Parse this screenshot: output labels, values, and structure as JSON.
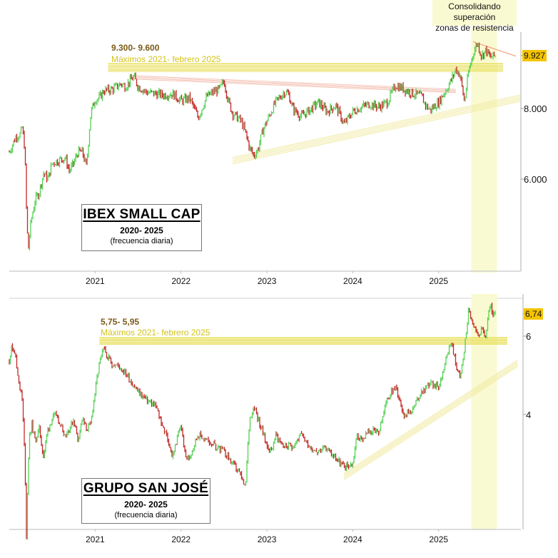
{
  "annotation": {
    "line1": "Consolidando superación",
    "line2": "zonas de resistencia"
  },
  "colors": {
    "up": "#44cc44",
    "down": "#bb1111",
    "resistance": "#e8e060",
    "trend": "#f0eaa0",
    "downtrend": "#f2b8a8",
    "highlight": "#fafad2",
    "last_value_bg": "#f5c400",
    "range_label": "#7a5a14",
    "sub_label": "#d4c318"
  },
  "chart_data": [
    {
      "type": "line",
      "title": "IBEX SMALL CAP",
      "subtitle": "2020- 2025",
      "frequency": "(frecuencia diaria)",
      "scale": "log",
      "ylim": [
        4300,
        10700
      ],
      "yticks": [
        {
          "value": 6000,
          "label": "6.000"
        },
        {
          "value": 8000,
          "label": "8.000"
        }
      ],
      "last_value": {
        "value": 9927,
        "label": "9.927"
      },
      "xticks": [
        {
          "value": 2021,
          "label": "2021"
        },
        {
          "value": 2022,
          "label": "2022"
        },
        {
          "value": 2023,
          "label": "2023"
        },
        {
          "value": 2024,
          "label": "2024"
        },
        {
          "value": 2025,
          "label": "2025"
        }
      ],
      "xlim": [
        2019.9,
        2025.95
      ],
      "resistance": {
        "low": 9300,
        "high": 9600,
        "label": "9.300- 9.600",
        "sublabel": "Máximos 2021- febrero 2025",
        "from": 2021.15,
        "to": 2025.75
      },
      "highlight_span": [
        2025.38,
        2025.68
      ],
      "series_x": [
        2020.0,
        2020.08,
        2020.13,
        2020.15,
        2020.18,
        2020.2,
        2020.22,
        2020.25,
        2020.3,
        2020.35,
        2020.4,
        2020.45,
        2020.5,
        2020.55,
        2020.6,
        2020.65,
        2020.7,
        2020.75,
        2020.8,
        2020.85,
        2020.9,
        2020.95,
        2021.0,
        2021.05,
        2021.1,
        2021.2,
        2021.3,
        2021.35,
        2021.45,
        2021.5,
        2021.6,
        2021.7,
        2021.8,
        2021.9,
        2022.0,
        2022.1,
        2022.2,
        2022.3,
        2022.4,
        2022.45,
        2022.5,
        2022.55,
        2022.6,
        2022.7,
        2022.75,
        2022.8,
        2022.85,
        2022.9,
        2022.95,
        2023.0,
        2023.1,
        2023.2,
        2023.25,
        2023.3,
        2023.4,
        2023.5,
        2023.6,
        2023.7,
        2023.8,
        2023.9,
        2024.0,
        2024.1,
        2024.2,
        2024.3,
        2024.4,
        2024.5,
        2024.6,
        2024.7,
        2024.8,
        2024.85,
        2024.9,
        2025.0,
        2025.1,
        2025.15,
        2025.2,
        2025.25,
        2025.3,
        2025.35,
        2025.4,
        2025.45,
        2025.5,
        2025.55,
        2025.6,
        2025.66
      ],
      "series_y": [
        6700,
        7150,
        7200,
        7400,
        6800,
        5300,
        4450,
        5000,
        5500,
        5700,
        6150,
        6000,
        6400,
        6450,
        6500,
        6550,
        6200,
        6400,
        6700,
        6700,
        6300,
        7850,
        8300,
        8350,
        8600,
        8650,
        8850,
        8750,
        9100,
        8750,
        8550,
        8500,
        8450,
        8500,
        8250,
        8350,
        7700,
        8400,
        8600,
        8650,
        8950,
        8250,
        7850,
        7600,
        7250,
        6800,
        6600,
        6800,
        7300,
        7600,
        8200,
        8550,
        8500,
        8000,
        7750,
        7950,
        8200,
        7900,
        8100,
        7500,
        7900,
        8050,
        8150,
        8050,
        8200,
        8800,
        8650,
        8500,
        8400,
        8100,
        7950,
        8200,
        8700,
        9000,
        9400,
        9150,
        8200,
        9300,
        10000,
        10450,
        9900,
        10150,
        9850,
        9927
      ]
    },
    {
      "type": "line",
      "title": "GRUPO SAN JOSÉ",
      "subtitle": "2020- 2025",
      "frequency": "(frecuencia diaria)",
      "scale": "log",
      "ylim": [
        2.1,
        7.3
      ],
      "yticks": [
        {
          "value": 4,
          "label": "4"
        },
        {
          "value": 6,
          "label": "6"
        }
      ],
      "last_value": {
        "value": 6.74,
        "label": "6,74"
      },
      "xticks": [
        {
          "value": 2021,
          "label": "2021"
        },
        {
          "value": 2022,
          "label": "2022"
        },
        {
          "value": 2023,
          "label": "2023"
        },
        {
          "value": 2024,
          "label": "2024"
        },
        {
          "value": 2025,
          "label": "2025"
        }
      ],
      "xlim": [
        2019.9,
        2025.95
      ],
      "resistance": {
        "low": 5.75,
        "high": 5.95,
        "label": "5,75- 5,95",
        "sublabel": "Máximos 2021- febrero 2025",
        "from": 2021.05,
        "to": 2025.8
      },
      "highlight_span": [
        2025.38,
        2025.68
      ],
      "series_x": [
        2020.0,
        2020.03,
        2020.06,
        2020.1,
        2020.15,
        2020.18,
        2020.2,
        2020.23,
        2020.26,
        2020.3,
        2020.35,
        2020.4,
        2020.45,
        2020.5,
        2020.55,
        2020.6,
        2020.65,
        2020.7,
        2020.75,
        2020.8,
        2020.85,
        2020.9,
        2020.95,
        2021.0,
        2021.05,
        2021.1,
        2021.15,
        2021.2,
        2021.3,
        2021.4,
        2021.5,
        2021.6,
        2021.7,
        2021.8,
        2021.85,
        2021.9,
        2022.0,
        2022.05,
        2022.1,
        2022.2,
        2022.3,
        2022.4,
        2022.5,
        2022.6,
        2022.7,
        2022.75,
        2022.8,
        2022.85,
        2022.9,
        2023.0,
        2023.05,
        2023.1,
        2023.2,
        2023.3,
        2023.4,
        2023.5,
        2023.6,
        2023.7,
        2023.8,
        2023.9,
        2024.0,
        2024.05,
        2024.1,
        2024.2,
        2024.3,
        2024.4,
        2024.45,
        2024.5,
        2024.6,
        2024.7,
        2024.8,
        2024.9,
        2025.0,
        2025.05,
        2025.1,
        2025.15,
        2025.2,
        2025.25,
        2025.3,
        2025.35,
        2025.4,
        2025.45,
        2025.5,
        2025.55,
        2025.6,
        2025.63,
        2025.66
      ],
      "series_y": [
        5.3,
        5.7,
        5.6,
        4.9,
        4.3,
        3.2,
        2.1,
        3.5,
        3.8,
        3.5,
        3.7,
        3.2,
        3.7,
        3.9,
        4.0,
        3.8,
        3.6,
        3.7,
        3.9,
        3.5,
        3.9,
        3.7,
        3.8,
        4.5,
        5.2,
        5.6,
        5.4,
        5.2,
        5.1,
        4.8,
        4.5,
        4.3,
        4.2,
        3.7,
        3.5,
        3.2,
        3.8,
        3.2,
        3.2,
        3.6,
        3.5,
        3.4,
        3.3,
        3.1,
        2.9,
        2.7,
        3.9,
        4.2,
        3.9,
        3.4,
        3.3,
        3.6,
        3.4,
        3.4,
        3.6,
        3.4,
        3.3,
        3.35,
        3.2,
        3.05,
        3.1,
        3.6,
        3.5,
        3.7,
        3.6,
        4.3,
        4.5,
        4.6,
        4.0,
        4.1,
        4.5,
        4.7,
        4.6,
        5.0,
        5.5,
        5.8,
        5.2,
        4.8,
        5.6,
        6.9,
        6.3,
        6.0,
        6.2,
        6.0,
        7.1,
        6.6,
        6.74
      ]
    }
  ]
}
